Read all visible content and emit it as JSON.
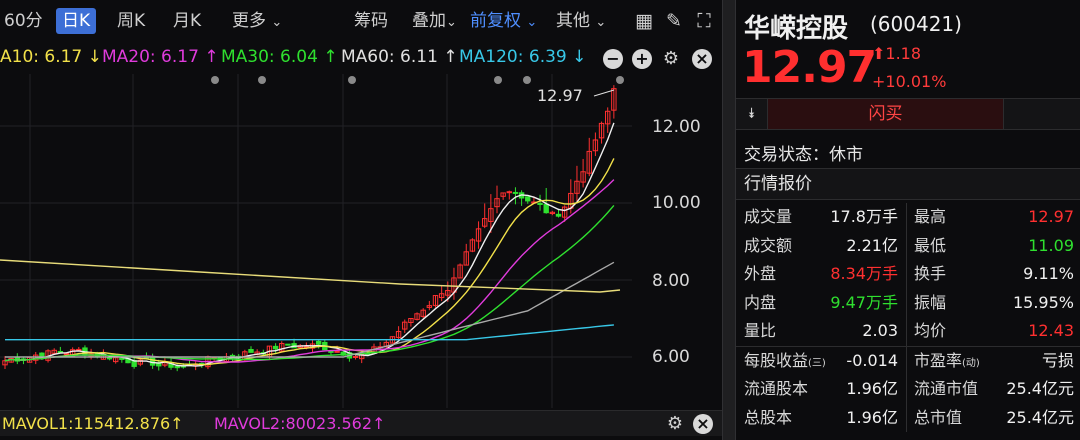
{
  "toolbar": {
    "period_60": "60分",
    "period_day": "日K",
    "period_week": "周K",
    "period_month": "月K",
    "more": "更多",
    "chips": "筹码",
    "overlay": "叠加",
    "fq": "前复权",
    "other": "其他"
  },
  "ma": {
    "ma10": "A10: 6.17 ↓",
    "ma20": "MA20: 6.17 ↑",
    "ma30": "MA30: 6.04 ↑",
    "ma60": "MA60: 6.11 ↑",
    "ma120": "MA120: 6.39 ↓"
  },
  "colors": {
    "ma10": "#f2e14a",
    "ma20": "#e03bdc",
    "ma30": "#2fe02f",
    "ma60": "#e0e0e0",
    "ma120": "#38c8e8",
    "up": "#ff3030",
    "down": "#2fe02f"
  },
  "chart": {
    "price_labels": [
      "12.00",
      "10.00",
      "8.00",
      "6.00"
    ],
    "high_marker": "12.97"
  },
  "volume": {
    "mavol1": "MAVOL1:115412.876↑",
    "mavol2": "MAVOL2:80023.562↑"
  },
  "stock": {
    "name": "华嵘控股",
    "code": "(600421)",
    "price": "12.97",
    "change": "1.18",
    "change_pct": "+10.01%",
    "buy_button": "闪买",
    "trade_status": "交易状态：休市",
    "section_title": "行情报价"
  },
  "quotes": [
    {
      "l": "成交量",
      "v": "17.8万手",
      "vc": "white",
      "l2": "最高",
      "v2": "12.97",
      "v2c": "red"
    },
    {
      "l": "成交额",
      "v": "2.21亿",
      "vc": "white",
      "l2": "最低",
      "v2": "11.09",
      "v2c": "green"
    },
    {
      "l": "外盘",
      "v": "8.34万手",
      "vc": "red",
      "l2": "换手",
      "v2": "9.11%",
      "v2c": "white"
    },
    {
      "l": "内盘",
      "v": "9.47万手",
      "vc": "green",
      "l2": "振幅",
      "v2": "15.95%",
      "v2c": "white"
    },
    {
      "l": "量比",
      "v": "2.03",
      "vc": "white",
      "l2": "均价",
      "v2": "12.43",
      "v2c": "red"
    }
  ],
  "fundamentals": [
    {
      "l": "每股收益",
      "sub": "(三)",
      "v": "-0.014",
      "l2": "市盈率",
      "sub2": "(动)",
      "v2": "亏损"
    },
    {
      "l": "流通股本",
      "sub": "",
      "v": "1.96亿",
      "l2": "流通市值",
      "sub2": "",
      "v2": "25.4亿元"
    },
    {
      "l": "总股本",
      "sub": "",
      "v": "1.96亿",
      "l2": "总市值",
      "sub2": "",
      "v2": "25.4亿元"
    }
  ]
}
